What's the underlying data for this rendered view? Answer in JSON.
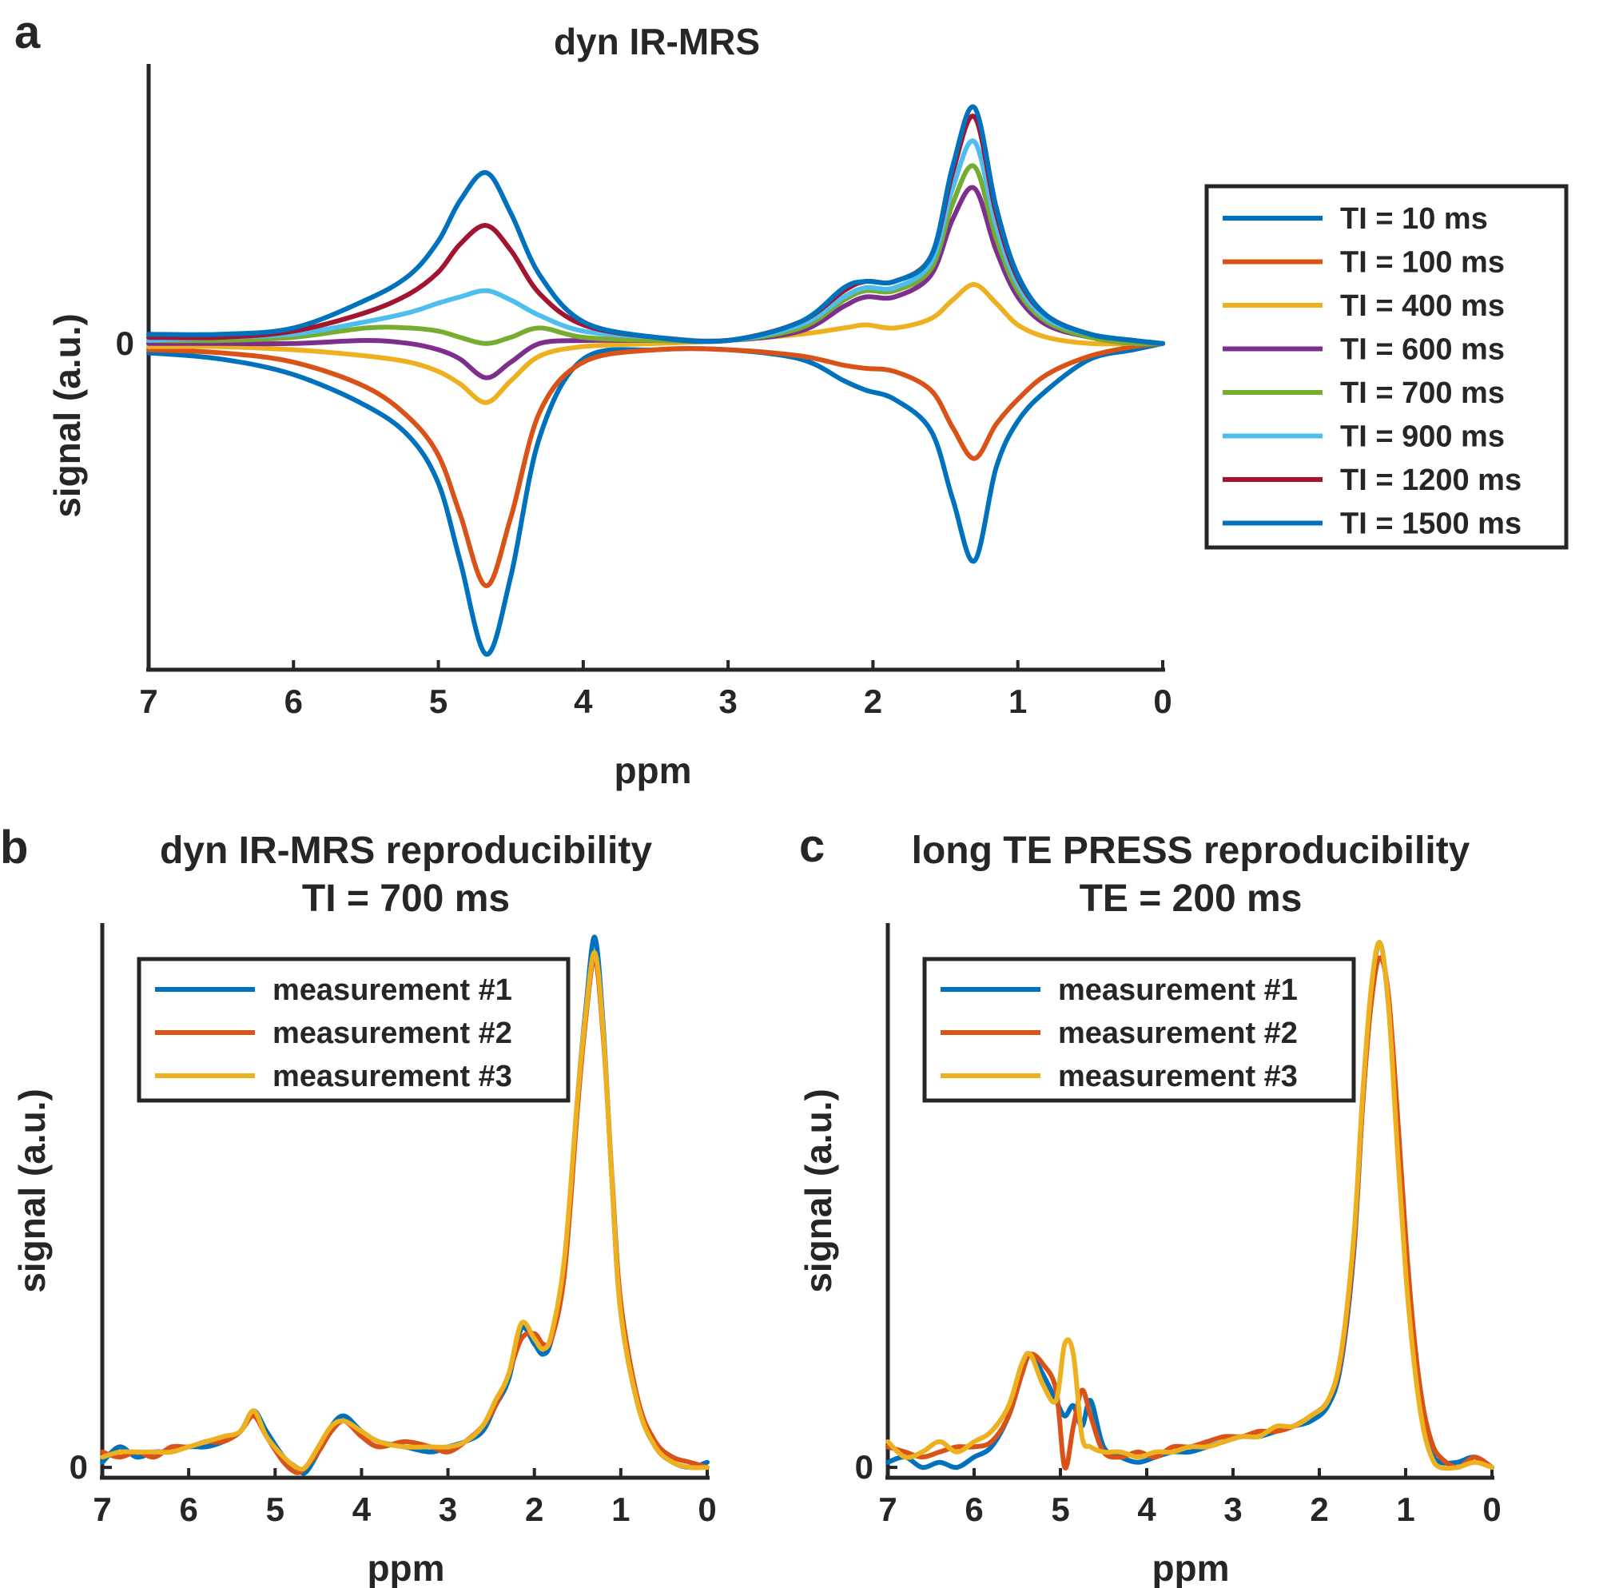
{
  "chart_data": [
    {
      "panel_label": "a",
      "type": "line",
      "title": "dyn IR-MRS",
      "subtitle": "",
      "xlabel": "ppm",
      "ylabel": "signal (a.u.)",
      "xlim": [
        0,
        7
      ],
      "x_reversed": true,
      "ylim": [
        -1.05,
        0.9
      ],
      "x_ticks": [
        "7",
        "6",
        "5",
        "4",
        "3",
        "2",
        "1",
        "0"
      ],
      "y_ticks": [
        "0"
      ],
      "grid": false,
      "legend_position": "outside-right",
      "legend": [
        "TI = 10 ms",
        "TI = 100 ms",
        "TI = 400 ms",
        "TI = 600 ms",
        "TI = 700 ms",
        "TI = 900 ms",
        "TI = 1200 ms",
        "TI = 1500 ms"
      ],
      "x": [
        7.0,
        6.5,
        6.0,
        5.5,
        5.2,
        5.0,
        4.85,
        4.67,
        4.5,
        4.3,
        4.0,
        3.5,
        3.0,
        2.5,
        2.2,
        2.05,
        1.85,
        1.6,
        1.45,
        1.3,
        1.15,
        1.0,
        0.8,
        0.5,
        0.2,
        0.0
      ],
      "series": [
        {
          "name": "TI = 10 ms",
          "color": "#0072BD",
          "values": [
            -0.03,
            -0.05,
            -0.1,
            -0.2,
            -0.3,
            -0.45,
            -0.7,
            -1.0,
            -0.75,
            -0.3,
            -0.05,
            -0.02,
            -0.02,
            -0.05,
            -0.12,
            -0.15,
            -0.18,
            -0.28,
            -0.5,
            -0.7,
            -0.4,
            -0.25,
            -0.15,
            -0.05,
            -0.02,
            0.0
          ]
        },
        {
          "name": "TI = 100 ms",
          "color": "#D95319",
          "values": [
            -0.02,
            -0.03,
            -0.06,
            -0.14,
            -0.24,
            -0.36,
            -0.55,
            -0.78,
            -0.56,
            -0.22,
            -0.06,
            -0.02,
            -0.02,
            -0.04,
            -0.07,
            -0.08,
            -0.09,
            -0.15,
            -0.27,
            -0.37,
            -0.26,
            -0.18,
            -0.1,
            -0.04,
            -0.01,
            0.0
          ]
        },
        {
          "name": "TI = 400 ms",
          "color": "#EDB120",
          "values": [
            -0.01,
            -0.01,
            -0.02,
            -0.04,
            -0.06,
            -0.09,
            -0.13,
            -0.19,
            -0.12,
            -0.04,
            -0.01,
            0.0,
            0.01,
            0.03,
            0.05,
            0.06,
            0.05,
            0.08,
            0.14,
            0.19,
            0.13,
            0.06,
            0.02,
            0.0,
            0.0,
            0.0
          ]
        },
        {
          "name": "TI = 600 ms",
          "color": "#7E2F8E",
          "values": [
            0.0,
            0.0,
            0.0,
            0.01,
            0.0,
            -0.02,
            -0.05,
            -0.11,
            -0.06,
            0.0,
            0.01,
            0.01,
            0.01,
            0.04,
            0.12,
            0.15,
            0.15,
            0.22,
            0.4,
            0.5,
            0.3,
            0.15,
            0.06,
            0.02,
            0.0,
            0.0
          ]
        },
        {
          "name": "TI = 700 ms",
          "color": "#77AC30",
          "values": [
            0.01,
            0.01,
            0.02,
            0.05,
            0.05,
            0.04,
            0.02,
            0.0,
            0.02,
            0.05,
            0.02,
            0.01,
            0.01,
            0.05,
            0.14,
            0.17,
            0.17,
            0.24,
            0.45,
            0.57,
            0.34,
            0.17,
            0.07,
            0.02,
            0.0,
            0.0
          ]
        },
        {
          "name": "TI = 900 ms",
          "color": "#4DBEEE",
          "values": [
            0.01,
            0.02,
            0.03,
            0.07,
            0.1,
            0.13,
            0.15,
            0.17,
            0.14,
            0.09,
            0.04,
            0.02,
            0.01,
            0.06,
            0.15,
            0.18,
            0.18,
            0.26,
            0.5,
            0.65,
            0.38,
            0.19,
            0.08,
            0.03,
            0.01,
            0.0
          ]
        },
        {
          "name": "TI = 1200 ms",
          "color": "#A2142F",
          "values": [
            0.02,
            0.02,
            0.04,
            0.1,
            0.16,
            0.23,
            0.32,
            0.38,
            0.3,
            0.16,
            0.06,
            0.02,
            0.01,
            0.07,
            0.17,
            0.2,
            0.2,
            0.28,
            0.55,
            0.73,
            0.42,
            0.21,
            0.09,
            0.03,
            0.01,
            0.0
          ]
        },
        {
          "name": "TI = 1500 ms",
          "color": "#0072BD",
          "values": [
            0.03,
            0.03,
            0.05,
            0.14,
            0.22,
            0.33,
            0.46,
            0.55,
            0.42,
            0.22,
            0.07,
            0.02,
            0.01,
            0.07,
            0.18,
            0.2,
            0.2,
            0.28,
            0.57,
            0.76,
            0.44,
            0.22,
            0.09,
            0.03,
            0.01,
            0.0
          ]
        }
      ]
    },
    {
      "panel_label": "b",
      "type": "line",
      "title": "dyn IR-MRS reproducibility",
      "subtitle": "TI = 700 ms",
      "xlabel": "ppm",
      "ylabel": "signal (a.u.)",
      "xlim": [
        0,
        7
      ],
      "x_reversed": true,
      "ylim": [
        -0.02,
        1.05
      ],
      "x_ticks": [
        "7",
        "6",
        "5",
        "4",
        "3",
        "2",
        "1",
        "0"
      ],
      "y_ticks": [
        "0"
      ],
      "grid": false,
      "legend_position": "top-left",
      "legend": [
        "measurement #1",
        "measurement #2",
        "measurement #3"
      ],
      "x": [
        7.0,
        6.8,
        6.6,
        6.4,
        6.2,
        6.0,
        5.8,
        5.6,
        5.4,
        5.25,
        5.1,
        4.9,
        4.75,
        4.65,
        4.5,
        4.35,
        4.2,
        4.0,
        3.8,
        3.5,
        3.2,
        3.0,
        2.8,
        2.6,
        2.45,
        2.3,
        2.15,
        2.0,
        1.9,
        1.8,
        1.65,
        1.5,
        1.4,
        1.3,
        1.2,
        1.1,
        1.0,
        0.8,
        0.6,
        0.4,
        0.2,
        0.0
      ],
      "series": [
        {
          "name": "measurement #1",
          "color": "#0072BD",
          "values": [
            0.01,
            0.04,
            0.02,
            0.03,
            0.03,
            0.04,
            0.04,
            0.05,
            0.07,
            0.11,
            0.07,
            0.02,
            0.0,
            -0.01,
            0.03,
            0.08,
            0.1,
            0.07,
            0.05,
            0.04,
            0.03,
            0.04,
            0.05,
            0.07,
            0.12,
            0.17,
            0.27,
            0.24,
            0.22,
            0.25,
            0.4,
            0.72,
            0.9,
            1.03,
            0.85,
            0.55,
            0.3,
            0.12,
            0.04,
            0.01,
            0.0,
            0.01
          ]
        },
        {
          "name": "measurement #2",
          "color": "#D95319",
          "values": [
            0.03,
            0.02,
            0.03,
            0.02,
            0.04,
            0.04,
            0.05,
            0.05,
            0.07,
            0.1,
            0.06,
            0.01,
            -0.01,
            0.0,
            0.03,
            0.07,
            0.09,
            0.06,
            0.04,
            0.05,
            0.04,
            0.03,
            0.05,
            0.08,
            0.12,
            0.18,
            0.25,
            0.26,
            0.24,
            0.25,
            0.38,
            0.7,
            0.88,
            0.99,
            0.83,
            0.56,
            0.32,
            0.13,
            0.05,
            0.02,
            0.01,
            0.0
          ]
        },
        {
          "name": "measurement #3",
          "color": "#EDB120",
          "values": [
            0.02,
            0.03,
            0.03,
            0.03,
            0.03,
            0.04,
            0.05,
            0.06,
            0.07,
            0.11,
            0.06,
            0.02,
            0.0,
            0.0,
            0.04,
            0.08,
            0.09,
            0.07,
            0.05,
            0.04,
            0.04,
            0.04,
            0.05,
            0.08,
            0.13,
            0.18,
            0.28,
            0.25,
            0.23,
            0.26,
            0.41,
            0.72,
            0.89,
            1.0,
            0.84,
            0.55,
            0.3,
            0.12,
            0.04,
            0.01,
            0.0,
            0.0
          ]
        }
      ]
    },
    {
      "panel_label": "c",
      "type": "line",
      "title": "long TE PRESS reproducibility",
      "subtitle": "TE = 200 ms",
      "xlabel": "ppm",
      "ylabel": "signal (a.u.)",
      "xlim": [
        0,
        7
      ],
      "x_reversed": true,
      "ylim": [
        -0.02,
        1.05
      ],
      "x_ticks": [
        "7",
        "6",
        "5",
        "4",
        "3",
        "2",
        "1",
        "0"
      ],
      "y_ticks": [
        "0"
      ],
      "grid": false,
      "legend_position": "top-left",
      "legend": [
        "measurement #1",
        "measurement #2",
        "measurement #3"
      ],
      "x": [
        7.0,
        6.8,
        6.6,
        6.4,
        6.2,
        6.0,
        5.8,
        5.6,
        5.45,
        5.35,
        5.2,
        5.05,
        4.95,
        4.85,
        4.75,
        4.65,
        4.5,
        4.3,
        4.1,
        3.9,
        3.7,
        3.5,
        3.3,
        3.1,
        2.9,
        2.7,
        2.5,
        2.3,
        2.1,
        1.9,
        1.75,
        1.6,
        1.5,
        1.4,
        1.3,
        1.2,
        1.1,
        1.0,
        0.9,
        0.8,
        0.7,
        0.6,
        0.4,
        0.2,
        0.0
      ],
      "series": [
        {
          "name": "measurement #1",
          "color": "#0072BD",
          "values": [
            0.01,
            0.02,
            0.0,
            0.01,
            0.0,
            0.02,
            0.04,
            0.1,
            0.18,
            0.22,
            0.18,
            0.13,
            0.1,
            0.12,
            0.08,
            0.13,
            0.04,
            0.02,
            0.01,
            0.02,
            0.03,
            0.03,
            0.04,
            0.05,
            0.06,
            0.06,
            0.07,
            0.08,
            0.09,
            0.12,
            0.2,
            0.42,
            0.7,
            0.92,
            1.02,
            0.9,
            0.65,
            0.4,
            0.22,
            0.1,
            0.03,
            0.01,
            0.01,
            0.02,
            0.0
          ]
        },
        {
          "name": "measurement #2",
          "color": "#D95319",
          "values": [
            0.04,
            0.03,
            0.02,
            0.03,
            0.04,
            0.04,
            0.05,
            0.1,
            0.18,
            0.22,
            0.2,
            0.15,
            0.0,
            0.08,
            0.15,
            0.1,
            0.03,
            0.02,
            0.03,
            0.02,
            0.04,
            0.04,
            0.05,
            0.06,
            0.06,
            0.07,
            0.07,
            0.08,
            0.1,
            0.13,
            0.21,
            0.43,
            0.7,
            0.9,
            0.99,
            0.92,
            0.7,
            0.45,
            0.25,
            0.12,
            0.05,
            0.02,
            0.0,
            0.02,
            0.0
          ]
        },
        {
          "name": "measurement #3",
          "color": "#EDB120",
          "values": [
            0.05,
            0.02,
            0.03,
            0.05,
            0.03,
            0.05,
            0.07,
            0.12,
            0.2,
            0.22,
            0.16,
            0.13,
            0.24,
            0.22,
            0.06,
            0.04,
            0.03,
            0.03,
            0.02,
            0.03,
            0.03,
            0.04,
            0.04,
            0.05,
            0.06,
            0.06,
            0.08,
            0.08,
            0.1,
            0.13,
            0.22,
            0.45,
            0.72,
            0.93,
            1.02,
            0.9,
            0.63,
            0.38,
            0.2,
            0.08,
            0.02,
            0.0,
            0.0,
            0.01,
            0.0
          ]
        }
      ]
    }
  ]
}
